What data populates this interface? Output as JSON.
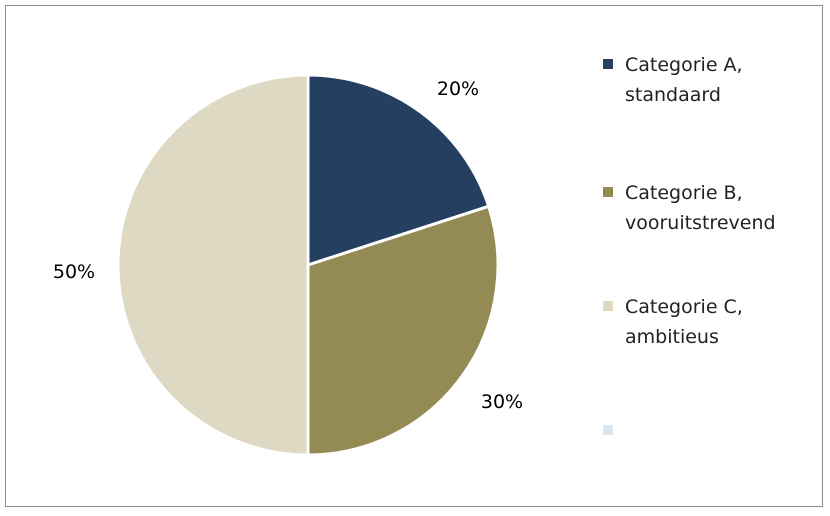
{
  "chart_data": {
    "type": "pie",
    "categories": [
      "Categorie A,\nstandaard",
      "Categorie B,\nvooruitstrevend",
      "Categorie C,\nambitieus",
      ""
    ],
    "values": [
      20,
      30,
      50,
      0
    ],
    "data_labels": [
      "20%",
      "30%",
      "50%",
      ""
    ],
    "colors": [
      "#243F60",
      "#948A54",
      "#DDD9C3",
      "#DCE6F2"
    ],
    "legend_position": "right",
    "start_angle_deg": 0,
    "direction": "clockwise"
  }
}
